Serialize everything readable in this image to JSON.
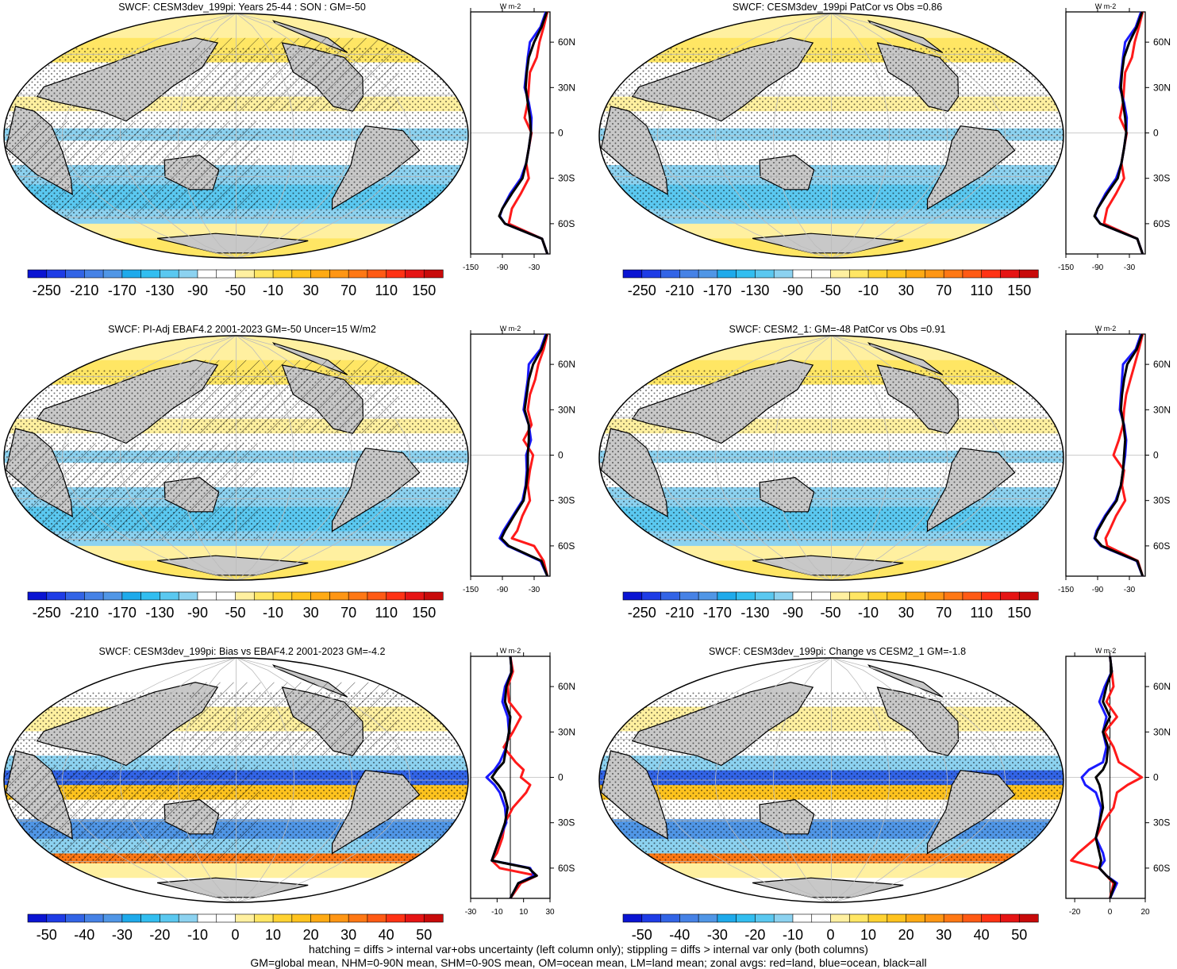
{
  "colors": {
    "land": "#c8c8c8",
    "map_outline": "#000000",
    "land_line": "#ff1a1a",
    "ocean_line": "#1a1aff",
    "all_line": "#000000"
  },
  "colorbar_abs": {
    "labels": [
      "-250",
      "-210",
      "-170",
      "-130",
      "-90",
      "-50",
      "-10",
      "30",
      "70",
      "110",
      "150"
    ],
    "colors": [
      "#0a14d2",
      "#1e3ce6",
      "#3264e6",
      "#4682e6",
      "#5096e6",
      "#1eaaeb",
      "#32bef0",
      "#5ac8f0",
      "#8cd2f0",
      "#ffffff",
      "#ffffff",
      "#fff0a0",
      "#ffe664",
      "#ffd232",
      "#ffc31e",
      "#ffaa14",
      "#ff9614",
      "#ff7814",
      "#ff5a14",
      "#ff3214",
      "#e61414",
      "#c80a0a"
    ]
  },
  "colorbar_diff": {
    "labels": [
      "-50",
      "-40",
      "-30",
      "-20",
      "-10",
      "0",
      "10",
      "20",
      "30",
      "40",
      "50"
    ],
    "colors": [
      "#0a14d2",
      "#1e3ce6",
      "#3264e6",
      "#4682e6",
      "#5096e6",
      "#1eaaeb",
      "#32bef0",
      "#5ac8f0",
      "#8cd2f0",
      "#ffffff",
      "#ffffff",
      "#fff0a0",
      "#ffe664",
      "#ffd232",
      "#ffc31e",
      "#ffaa14",
      "#ff9614",
      "#ff7814",
      "#ff5a14",
      "#ff3214",
      "#e61414",
      "#c80a0a"
    ]
  },
  "chart_data": [
    {
      "type": "heatmap",
      "title": "SWCF: CESM3dev_199pi: Years 25-44 : SON : GM=-50",
      "colorbar": "abs",
      "hatching": true,
      "zonal": {
        "unit": "W m-2",
        "xticks": [
          "-150",
          "-90",
          "-30"
        ],
        "xlim": [
          -150,
          0
        ],
        "yticks": [
          "60N",
          "30N",
          "0",
          "30S",
          "60S"
        ],
        "ytick_values": [
          60,
          30,
          0,
          -30,
          -60
        ],
        "ylim": [
          -80,
          80
        ],
        "lat": [
          80,
          70,
          60,
          50,
          40,
          30,
          20,
          10,
          0,
          -10,
          -20,
          -30,
          -40,
          -50,
          -55,
          -60,
          -70,
          -80
        ],
        "series": [
          {
            "name": "land",
            "values": [
              -5,
              -12,
              -20,
              -25,
              -38,
              -40,
              -42,
              -48,
              -35,
              -40,
              -45,
              -40,
              -55,
              -72,
              -75,
              -78,
              -15,
              -5
            ]
          },
          {
            "name": "ocean",
            "values": [
              -8,
              -18,
              -38,
              -42,
              -45,
              -48,
              -40,
              -35,
              -36,
              -40,
              -45,
              -55,
              -75,
              -90,
              -95,
              -85,
              -15,
              -5
            ]
          },
          {
            "name": "all",
            "values": [
              -6,
              -16,
              -30,
              -40,
              -44,
              -46,
              -42,
              -38,
              -36,
              -40,
              -45,
              -52,
              -72,
              -90,
              -96,
              -85,
              -15,
              -5
            ]
          }
        ]
      }
    },
    {
      "type": "heatmap",
      "title": "SWCF: CESM3dev_199pi PatCor vs Obs =0.86",
      "colorbar": "abs",
      "hatching": false,
      "zonal": {
        "unit": "W m-2",
        "xticks": [
          "-150",
          "-90",
          "-30"
        ],
        "xlim": [
          -150,
          0
        ],
        "yticks": [
          "60N",
          "30N",
          "0",
          "30S",
          "60S"
        ],
        "ytick_values": [
          60,
          30,
          0,
          -30,
          -60
        ],
        "ylim": [
          -80,
          80
        ],
        "lat": [
          80,
          70,
          60,
          50,
          40,
          30,
          20,
          10,
          0,
          -10,
          -20,
          -30,
          -40,
          -50,
          -55,
          -60,
          -70,
          -80
        ],
        "series": [
          {
            "name": "land",
            "values": [
              -5,
              -12,
              -20,
              -25,
              -38,
              -40,
              -42,
              -48,
              -35,
              -40,
              -45,
              -40,
              -55,
              -72,
              -75,
              -78,
              -15,
              -5
            ]
          },
          {
            "name": "ocean",
            "values": [
              -8,
              -18,
              -38,
              -42,
              -45,
              -48,
              -40,
              -35,
              -36,
              -40,
              -45,
              -55,
              -75,
              -90,
              -95,
              -85,
              -15,
              -5
            ]
          },
          {
            "name": "all",
            "values": [
              -6,
              -16,
              -30,
              -40,
              -44,
              -46,
              -42,
              -38,
              -36,
              -40,
              -45,
              -52,
              -72,
              -90,
              -96,
              -85,
              -15,
              -5
            ]
          }
        ]
      }
    },
    {
      "type": "heatmap",
      "title": "SWCF: PI-Adj EBAF4.2 2001-2023 GM=-50 Uncer=15 W/m2",
      "colorbar": "abs",
      "hatching": true,
      "zonal": {
        "unit": "W m-2",
        "xticks": [
          "-150",
          "-90",
          "-30"
        ],
        "xlim": [
          -150,
          0
        ],
        "yticks": [
          "60N",
          "30N",
          "0",
          "30S",
          "60S"
        ],
        "ytick_values": [
          60,
          30,
          0,
          -30,
          -60
        ],
        "ylim": [
          -80,
          80
        ],
        "lat": [
          80,
          70,
          60,
          50,
          40,
          30,
          20,
          10,
          0,
          -10,
          -20,
          -30,
          -40,
          -50,
          -55,
          -60,
          -70,
          -80
        ],
        "series": [
          {
            "name": "land",
            "values": [
              -5,
              -12,
              -22,
              -28,
              -38,
              -42,
              -35,
              -50,
              -32,
              -38,
              -42,
              -38,
              -52,
              -62,
              -72,
              -30,
              -12,
              -5
            ]
          },
          {
            "name": "ocean",
            "values": [
              -8,
              -18,
              -40,
              -42,
              -46,
              -50,
              -40,
              -36,
              -45,
              -44,
              -46,
              -52,
              -70,
              -88,
              -95,
              -80,
              -18,
              -5
            ]
          },
          {
            "name": "all",
            "values": [
              -6,
              -16,
              -32,
              -40,
              -44,
              -48,
              -40,
              -40,
              -42,
              -42,
              -45,
              -50,
              -68,
              -85,
              -92,
              -78,
              -16,
              -5
            ]
          }
        ]
      }
    },
    {
      "type": "heatmap",
      "title": "SWCF: CESM2_1: GM=-48 PatCor vs Obs =0.91",
      "colorbar": "abs",
      "hatching": false,
      "zonal": {
        "unit": "W m-2",
        "xticks": [
          "-150",
          "-90",
          "-30"
        ],
        "xlim": [
          -150,
          0
        ],
        "yticks": [
          "60N",
          "30N",
          "0",
          "30S",
          "60S"
        ],
        "ytick_values": [
          60,
          30,
          0,
          -30,
          -60
        ],
        "ylim": [
          -80,
          80
        ],
        "lat": [
          80,
          70,
          60,
          50,
          40,
          30,
          20,
          10,
          0,
          -10,
          -20,
          -30,
          -40,
          -50,
          -55,
          -60,
          -70,
          -80
        ],
        "series": [
          {
            "name": "land",
            "values": [
              -5,
              -12,
              -20,
              -28,
              -36,
              -40,
              -42,
              -50,
              -60,
              -40,
              -44,
              -38,
              -55,
              -68,
              -75,
              -72,
              -14,
              -5
            ]
          },
          {
            "name": "ocean",
            "values": [
              -8,
              -18,
              -42,
              -44,
              -46,
              -48,
              -40,
              -36,
              -38,
              -42,
              -46,
              -56,
              -76,
              -92,
              -96,
              -84,
              -16,
              -5
            ]
          },
          {
            "name": "all",
            "values": [
              -6,
              -16,
              -34,
              -40,
              -44,
              -46,
              -41,
              -38,
              -40,
              -42,
              -46,
              -54,
              -74,
              -90,
              -95,
              -82,
              -15,
              -5
            ]
          }
        ]
      }
    },
    {
      "type": "heatmap",
      "title": "SWCF: CESM3dev_199pi: Bias vs EBAF4.2 2001-2023  GM=-4.2",
      "colorbar": "diff",
      "hatching": true,
      "zonal": {
        "unit": "W m-2",
        "xticks": [
          "-30",
          "-10",
          "10",
          "30"
        ],
        "xlim": [
          -30,
          30
        ],
        "yticks": [
          "60N",
          "30N",
          "0",
          "30S",
          "60S"
        ],
        "ytick_values": [
          60,
          30,
          0,
          -30,
          -60
        ],
        "ylim": [
          -80,
          80
        ],
        "lat": [
          80,
          70,
          60,
          50,
          40,
          30,
          20,
          10,
          5,
          0,
          -5,
          -10,
          -20,
          -30,
          -40,
          -50,
          -55,
          -60,
          -65,
          -70,
          -80
        ],
        "series": [
          {
            "name": "land",
            "values": [
              0,
              2,
              -2,
              -1,
              8,
              2,
              -5,
              4,
              10,
              8,
              15,
              12,
              2,
              -4,
              -6,
              -10,
              -14,
              -8,
              20,
              8,
              0
            ]
          },
          {
            "name": "ocean",
            "values": [
              0,
              1,
              -4,
              -6,
              -2,
              -1,
              -3,
              -8,
              -12,
              -18,
              -12,
              -8,
              -4,
              -3,
              -8,
              -12,
              -14,
              15,
              18,
              6,
              0
            ]
          },
          {
            "name": "all",
            "values": [
              0,
              1,
              -3,
              -4,
              0,
              -1,
              -3,
              -5,
              -10,
              -14,
              -9,
              -5,
              -2,
              -4,
              -8,
              -12,
              -14,
              14,
              20,
              6,
              0
            ]
          }
        ]
      }
    },
    {
      "type": "heatmap",
      "title": "SWCF: CESM3dev_199pi: Change vs CESM2_1 GM=-1.8",
      "colorbar": "diff",
      "hatching": false,
      "zonal": {
        "unit": "W m-2",
        "xticks": [
          "-20",
          "0",
          "20"
        ],
        "xlim": [
          -25,
          20
        ],
        "yticks": [
          "60N",
          "30N",
          "0",
          "30S",
          "60S"
        ],
        "ytick_values": [
          60,
          30,
          0,
          -30,
          -60
        ],
        "ylim": [
          -80,
          80
        ],
        "lat": [
          80,
          70,
          60,
          50,
          40,
          30,
          20,
          10,
          5,
          0,
          -5,
          -10,
          -20,
          -30,
          -40,
          -50,
          -55,
          -60,
          -65,
          -70,
          -80
        ],
        "series": [
          {
            "name": "land",
            "values": [
              0,
              1,
              2,
              -2,
              4,
              -3,
              2,
              5,
              12,
              18,
              10,
              4,
              2,
              -4,
              -8,
              -18,
              -22,
              -6,
              -2,
              2,
              0
            ]
          },
          {
            "name": "ocean",
            "values": [
              0,
              1,
              -3,
              -6,
              -2,
              -4,
              -2,
              -4,
              -12,
              -16,
              -14,
              -8,
              -5,
              -6,
              -8,
              -4,
              -3,
              -6,
              -2,
              4,
              0
            ]
          },
          {
            "name": "all",
            "values": [
              0,
              1,
              -2,
              -4,
              0,
              -4,
              -1,
              -2,
              -4,
              -8,
              -6,
              -5,
              -4,
              -6,
              -8,
              -6,
              -5,
              -6,
              -2,
              3,
              0
            ]
          }
        ]
      }
    }
  ],
  "footer": {
    "line1": "hatching = diffs > internal var+obs uncertainty (left column only); stippling = diffs > internal var only (both columns)",
    "line2": "GM=global mean, NHM=0-90N mean, SHM=0-90S mean, OM=ocean mean, LM=land mean; zonal avgs: red=land, blue=ocean, black=all"
  }
}
